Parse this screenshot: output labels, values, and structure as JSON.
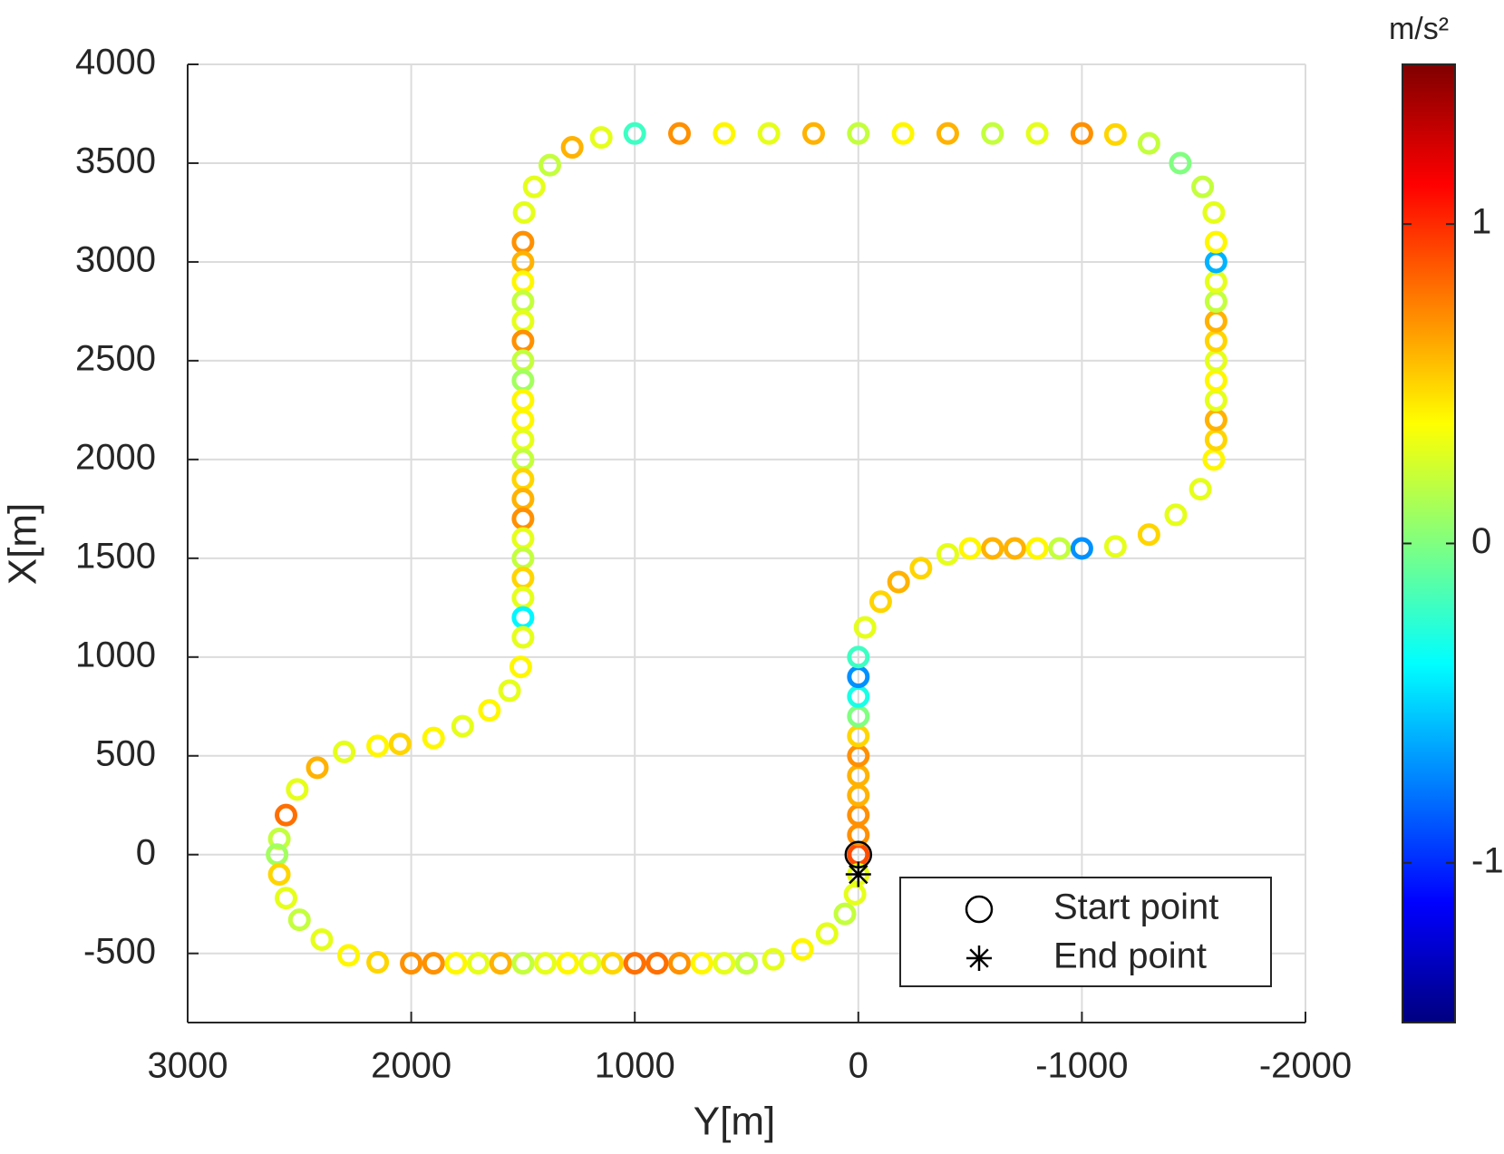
{
  "chart_data": {
    "type": "scatter",
    "xlabel": "Y[m]",
    "ylabel": "X[m]",
    "xlim": [
      3000,
      -2000
    ],
    "ylim": [
      -850,
      4000
    ],
    "xticks": [
      3000,
      2000,
      1000,
      0,
      -1000,
      -2000
    ],
    "yticks": [
      -500,
      0,
      500,
      1000,
      1500,
      2000,
      2500,
      3000,
      3500,
      4000
    ],
    "grid": true,
    "colormap": "jet",
    "clim": [
      -1.5,
      1.5
    ],
    "colorbar_ticks": [
      -1,
      0,
      1
    ],
    "colorbar_label": "m/s²",
    "legend": "lower right",
    "x": [
      0,
      0,
      0,
      0,
      0,
      0,
      0,
      0,
      0,
      0,
      0,
      -30,
      -100,
      -180,
      -280,
      -400,
      -500,
      -600,
      -700,
      -800,
      -900,
      -1000,
      -1150,
      -1300,
      -1420,
      -1530,
      -1590,
      -1600,
      -1600,
      -1600,
      -1600,
      -1600,
      -1600,
      -1600,
      -1600,
      -1600,
      -1600,
      -1600,
      -1590,
      -1540,
      -1440,
      -1300,
      -1150,
      -1000,
      -800,
      -600,
      -400,
      -200,
      0,
      200,
      400,
      600,
      800,
      1000,
      1150,
      1280,
      1380,
      1450,
      1495,
      1500,
      1500,
      1500,
      1500,
      1500,
      1500,
      1500,
      1500,
      1500,
      1500,
      1500,
      1500,
      1500,
      1500,
      1500,
      1500,
      1500,
      1500,
      1500,
      1500,
      1500,
      1510,
      1560,
      1650,
      1770,
      1900,
      2050,
      2150,
      2300,
      2420,
      2510,
      2560,
      2590,
      2600,
      2590,
      2560,
      2500,
      2400,
      2280,
      2150,
      2000,
      1900,
      1800,
      1700,
      1600,
      1500,
      1400,
      1300,
      1200,
      1100,
      1000,
      900,
      800,
      700,
      600,
      500,
      380,
      250,
      140,
      60,
      15,
      0
    ],
    "y": [
      0,
      100,
      200,
      300,
      400,
      500,
      600,
      700,
      800,
      900,
      1000,
      1150,
      1280,
      1380,
      1450,
      1520,
      1550,
      1550,
      1550,
      1550,
      1550,
      1550,
      1560,
      1620,
      1720,
      1850,
      2000,
      2100,
      2200,
      2300,
      2400,
      2500,
      2600,
      2700,
      2800,
      2900,
      3000,
      3100,
      3250,
      3380,
      3500,
      3600,
      3645,
      3650,
      3650,
      3650,
      3650,
      3650,
      3650,
      3650,
      3650,
      3650,
      3650,
      3650,
      3630,
      3580,
      3490,
      3380,
      3250,
      3100,
      3000,
      2900,
      2800,
      2700,
      2600,
      2500,
      2400,
      2300,
      2200,
      2100,
      2000,
      1900,
      1800,
      1700,
      1600,
      1500,
      1400,
      1300,
      1200,
      1100,
      950,
      830,
      730,
      650,
      590,
      560,
      550,
      520,
      440,
      330,
      200,
      80,
      0,
      -100,
      -220,
      -330,
      -430,
      -510,
      -545,
      -550,
      -550,
      -550,
      -550,
      -550,
      -550,
      -550,
      -550,
      -550,
      -550,
      -550,
      -550,
      -550,
      -550,
      -550,
      -550,
      -530,
      -480,
      -400,
      -300,
      -200,
      -100
    ],
    "values": [
      0.9,
      0.7,
      0.7,
      0.6,
      0.6,
      0.7,
      0.5,
      0,
      -0.3,
      -0.7,
      -0.2,
      0.3,
      0.5,
      0.6,
      0.5,
      0.3,
      0.4,
      0.6,
      0.6,
      0.4,
      0.2,
      -0.7,
      0.3,
      0.5,
      0.3,
      0.3,
      0.4,
      0.5,
      0.6,
      0.3,
      0.4,
      0.3,
      0.5,
      0.6,
      0.2,
      0.3,
      -0.6,
      0.4,
      0.3,
      0.2,
      0,
      0.2,
      0.5,
      0.7,
      0.3,
      0.2,
      0.6,
      0.4,
      0.2,
      0.6,
      0.3,
      0.4,
      0.7,
      -0.2,
      0.3,
      0.6,
      0.2,
      0.3,
      0.3,
      0.7,
      0.6,
      0.4,
      0.2,
      0.3,
      0.7,
      0.2,
      0.1,
      0.4,
      0.4,
      0.3,
      0.2,
      0.5,
      0.6,
      0.7,
      0.3,
      0.2,
      0.5,
      0.3,
      -0.4,
      0.3,
      0.4,
      0.3,
      0.4,
      0.3,
      0.4,
      0.5,
      0.4,
      0.3,
      0.6,
      0.3,
      0.8,
      0.2,
      0.1,
      0.5,
      0.3,
      0.2,
      0.3,
      0.4,
      0.5,
      0.7,
      0.7,
      0.4,
      0.3,
      0.6,
      0.2,
      0.3,
      0.4,
      0.3,
      0.5,
      0.8,
      0.8,
      0.7,
      0.4,
      0.3,
      0.2,
      0.3,
      0.4,
      0.3,
      0.2,
      0.3,
      0.3
    ],
    "markers": [
      {
        "name": "Start point",
        "symbol": "circle",
        "x": [
          0
        ],
        "y": [
          0
        ]
      },
      {
        "name": "End point",
        "symbol": "asterisk",
        "x": [
          0
        ],
        "y": [
          -100
        ]
      }
    ]
  }
}
